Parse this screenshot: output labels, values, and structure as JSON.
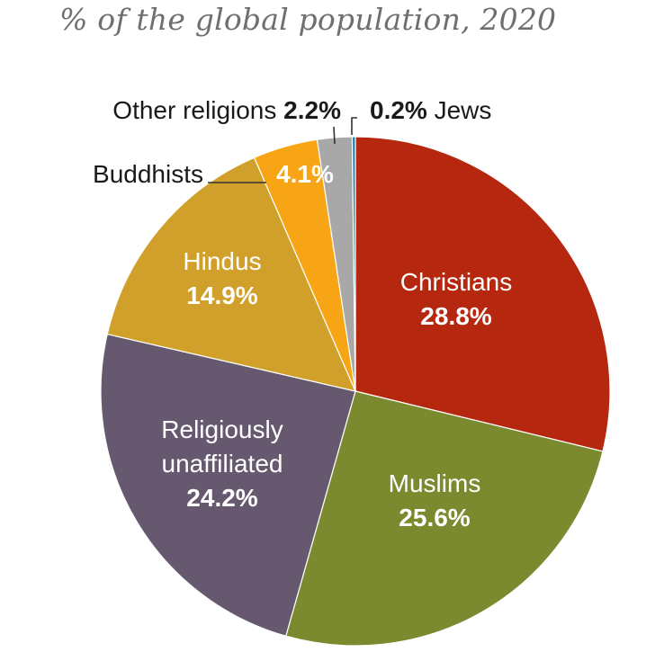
{
  "chart_data": {
    "type": "pie",
    "subtitle": "% of the global population, 2020",
    "unit": "%",
    "slices": [
      {
        "name": "Christians",
        "value": 28.8,
        "label": "28.8%",
        "color": "#b5270f"
      },
      {
        "name": "Muslims",
        "value": 25.6,
        "label": "25.6%",
        "color": "#7b8a2e"
      },
      {
        "name": "Religiously unaffiliated",
        "value": 24.2,
        "label": "24.2%",
        "color": "#66596f"
      },
      {
        "name": "Hindus",
        "value": 14.9,
        "label": "14.9%",
        "color": "#d1a02a"
      },
      {
        "name": "Buddhists",
        "value": 4.1,
        "label": "4.1%",
        "color": "#f7a514"
      },
      {
        "name": "Other religions",
        "value": 2.2,
        "label": "2.2%",
        "color": "#a8a8a8"
      },
      {
        "name": "Jews",
        "value": 0.2,
        "label": "0.2%",
        "color": "#1f7fb3"
      }
    ],
    "name_lines": {
      "Religiously unaffiliated": [
        "Religiously",
        "unaffiliated"
      ]
    },
    "start_angle": "12 o'clock",
    "direction": "clockwise"
  }
}
